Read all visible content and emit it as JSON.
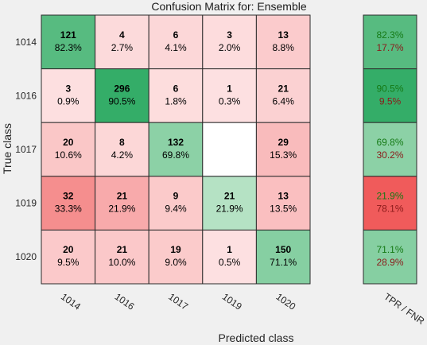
{
  "chart_data": {
    "type": "heatmap",
    "title": "Confusion Matrix for: Ensemble",
    "xlabel": "Predicted class",
    "ylabel": "True class",
    "classes": [
      "1014",
      "1016",
      "1017",
      "1019",
      "1020"
    ],
    "counts": [
      [
        121,
        4,
        6,
        3,
        13
      ],
      [
        3,
        296,
        6,
        1,
        21
      ],
      [
        20,
        8,
        132,
        null,
        29
      ],
      [
        32,
        21,
        9,
        21,
        13
      ],
      [
        20,
        21,
        19,
        1,
        150
      ]
    ],
    "percents": [
      [
        "82.3%",
        "2.7%",
        "4.1%",
        "2.0%",
        "8.8%"
      ],
      [
        "0.9%",
        "90.5%",
        "1.8%",
        "0.3%",
        "6.4%"
      ],
      [
        "10.6%",
        "4.2%",
        "69.8%",
        "",
        "15.3%"
      ],
      [
        "33.3%",
        "21.9%",
        "9.4%",
        "21.9%",
        "13.5%"
      ],
      [
        "9.5%",
        "10.0%",
        "9.0%",
        "0.5%",
        "71.1%"
      ]
    ],
    "summary_label": "TPR / FNR",
    "tpr": [
      "82.3%",
      "90.5%",
      "69.8%",
      "21.9%",
      "71.1%"
    ],
    "fnr": [
      "17.7%",
      "9.5%",
      "30.2%",
      "78.1%",
      "28.9%"
    ],
    "grid": true,
    "legend": "none"
  },
  "colors": {
    "background": "#f0f0f0",
    "correct_full": "#21a55a",
    "correct_light": "#b5e2c4",
    "error_light": "#fde1e2",
    "error_strong": "#f05858",
    "empty_cell": "#ffffff",
    "cell_border": "#2b2b2b",
    "tpr_text": "#157a15",
    "fnr_text": "#8b1a1a",
    "dark_text": "#000000"
  }
}
